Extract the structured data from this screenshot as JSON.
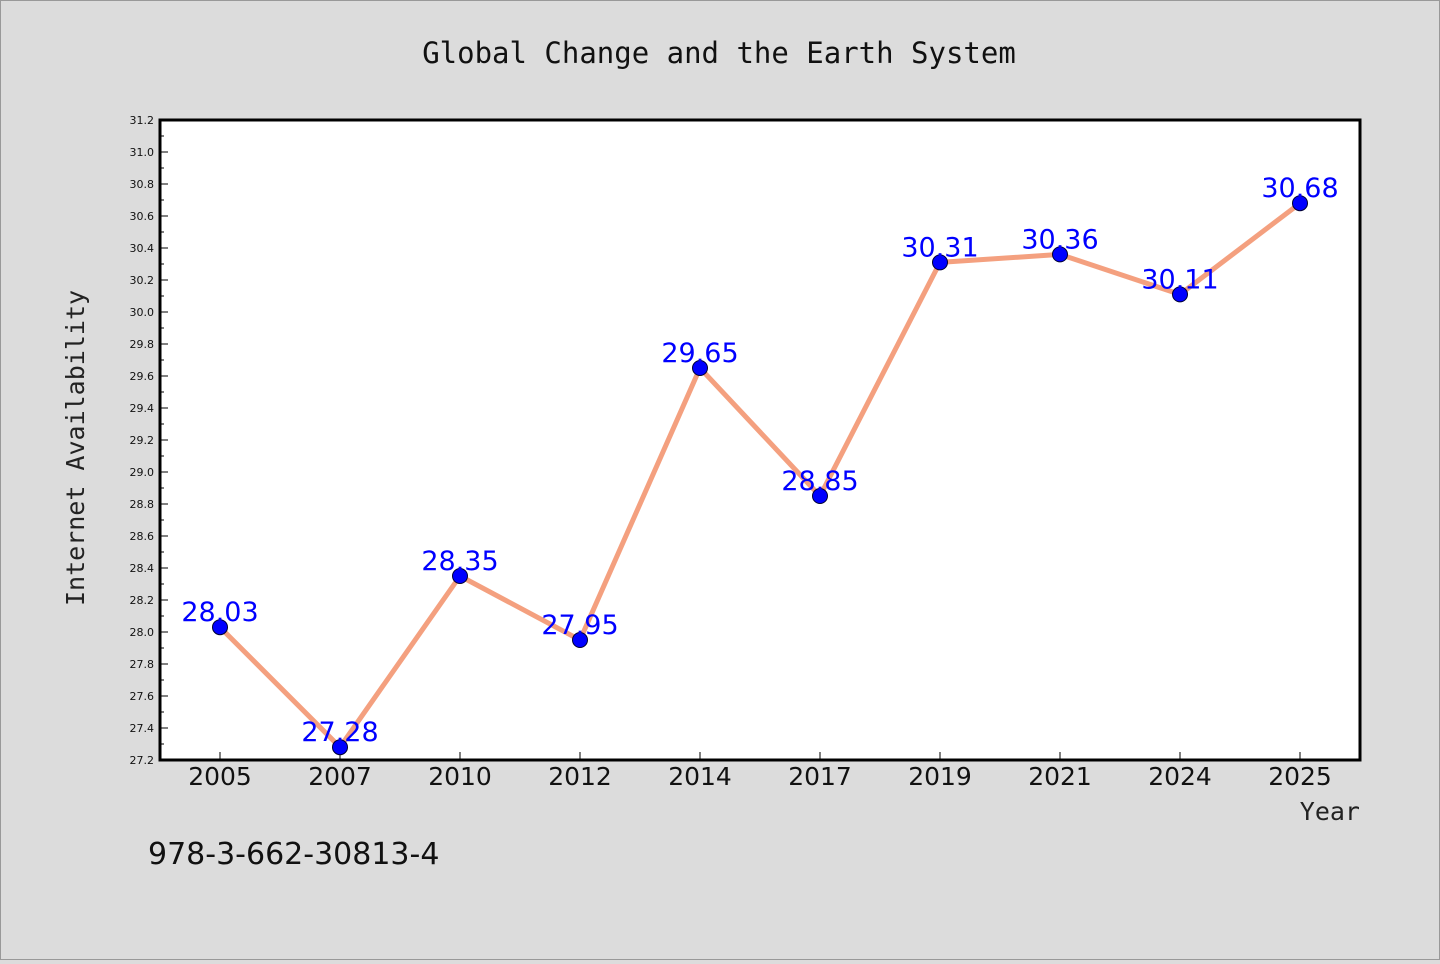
{
  "chart_data": {
    "type": "line",
    "title": "Global Change and the Earth System",
    "xlabel": "Year",
    "ylabel": "Internet Availability",
    "categories": [
      "2005",
      "2007",
      "2010",
      "2012",
      "2014",
      "2017",
      "2019",
      "2021",
      "2024",
      "2025"
    ],
    "values": [
      28.03,
      27.28,
      28.35,
      27.95,
      29.65,
      28.85,
      30.31,
      30.36,
      30.11,
      30.68
    ],
    "data_labels": [
      "28.03",
      "27.28",
      "28.35",
      "27.95",
      "29.65",
      "28.85",
      "30.31",
      "30.36",
      "30.11",
      "30.68"
    ],
    "ylim": [
      27.2,
      31.2
    ],
    "yticks": [
      "27.2",
      "27.4",
      "27.6",
      "27.8",
      "28.0",
      "28.2",
      "28.4",
      "28.6",
      "28.8",
      "29.0",
      "29.2",
      "29.4",
      "29.6",
      "29.8",
      "30.0",
      "30.2",
      "30.4",
      "30.6",
      "30.8",
      "31.0",
      "31.2"
    ],
    "grid": false,
    "line_color": "#f4a07f",
    "marker_color": "#0000ff",
    "label_color": "#0000ff",
    "background": "#dcdcdc",
    "plot_background": "#ffffff"
  },
  "annotation": {
    "isbn": "978-3-662-30813-4"
  }
}
